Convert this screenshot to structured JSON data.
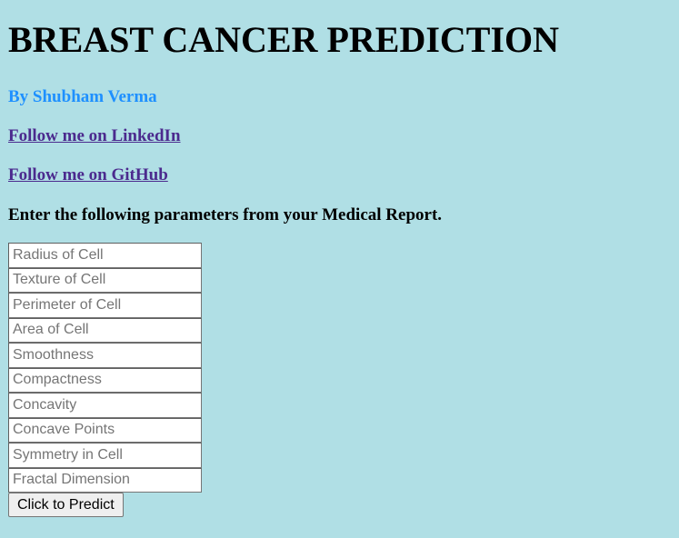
{
  "header": {
    "title": "BREAST CANCER PREDICTION",
    "author": "By Shubham Verma"
  },
  "links": {
    "linkedin": "Follow me on LinkedIn",
    "github": "Follow me on GitHub"
  },
  "instructions": "Enter the following parameters from your Medical Report.",
  "form": {
    "fields": [
      {
        "placeholder": "Radius of Cell",
        "value": ""
      },
      {
        "placeholder": "Texture of Cell",
        "value": ""
      },
      {
        "placeholder": "Perimeter of Cell",
        "value": ""
      },
      {
        "placeholder": "Area of Cell",
        "value": ""
      },
      {
        "placeholder": "Smoothness",
        "value": ""
      },
      {
        "placeholder": "Compactness",
        "value": ""
      },
      {
        "placeholder": "Concavity",
        "value": ""
      },
      {
        "placeholder": "Concave Points",
        "value": ""
      },
      {
        "placeholder": "Symmetry in Cell",
        "value": ""
      },
      {
        "placeholder": "Fractal Dimension",
        "value": ""
      }
    ],
    "submit_label": "Click to Predict"
  },
  "colors": {
    "background": "#b0dfe5",
    "author": "#1e90ff",
    "link": "#4b2a8e"
  }
}
